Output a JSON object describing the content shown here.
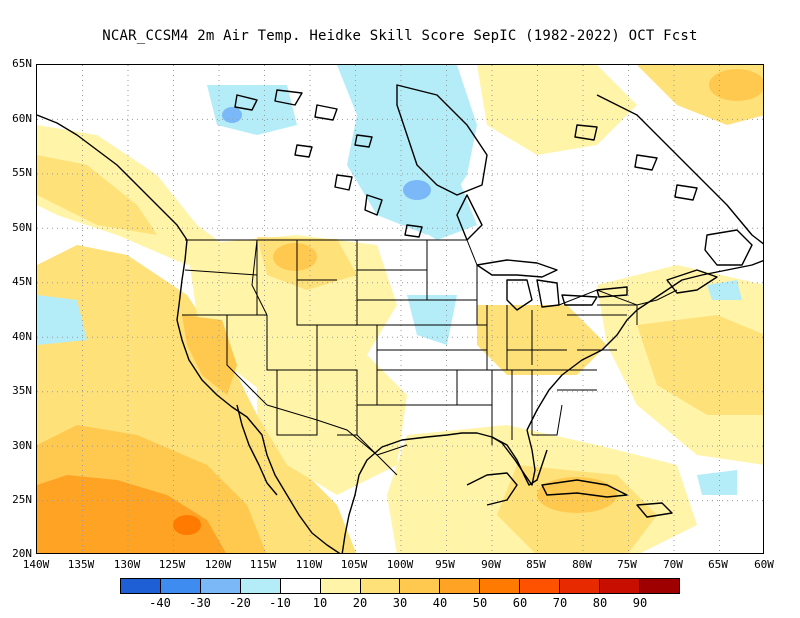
{
  "title": "NCAR_CCSM4  2m Air Temp. Heidke Skill Score SepIC (1982-2022) OCT Fcst",
  "lat_labels": [
    "65N",
    "60N",
    "55N",
    "50N",
    "45N",
    "40N",
    "35N",
    "30N",
    "25N",
    "20N"
  ],
  "lon_labels": [
    "140W",
    "135W",
    "130W",
    "125W",
    "120W",
    "115W",
    "110W",
    "105W",
    "100W",
    "95W",
    "90W",
    "85W",
    "80W",
    "75W",
    "70W",
    "65W",
    "60W"
  ],
  "colorbar": {
    "colors": [
      "#1e5fd6",
      "#3f8cf0",
      "#7ab8f7",
      "#b4ecf7",
      "#ffffff",
      "#fff4a8",
      "#ffe17a",
      "#ffc94f",
      "#ffa325",
      "#ff7a00",
      "#ff5200",
      "#e82a00",
      "#c80e00",
      "#9e0000"
    ],
    "labels": [
      "-40",
      "-30",
      "-20",
      "-10",
      "10",
      "20",
      "30",
      "40",
      "50",
      "60",
      "70",
      "80",
      "90"
    ]
  }
}
